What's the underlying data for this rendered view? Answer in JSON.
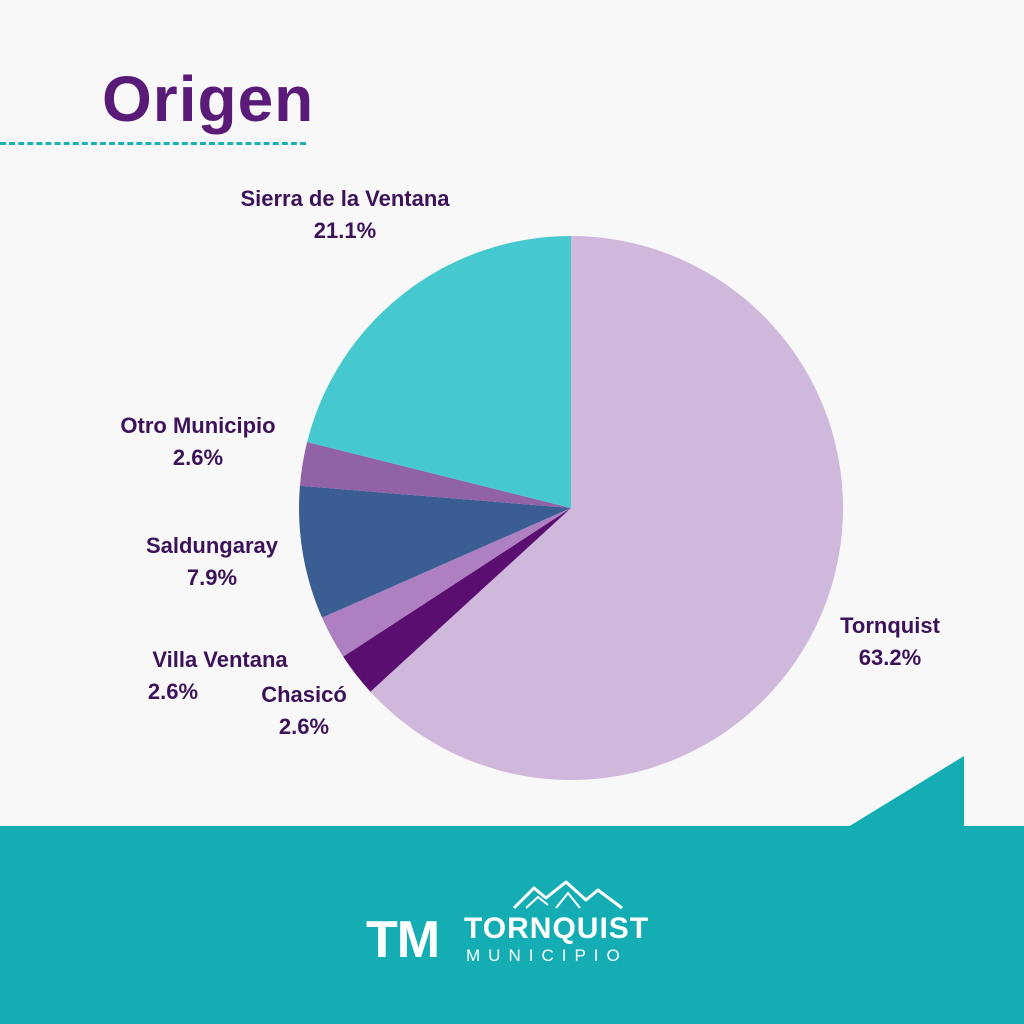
{
  "title": "Origen",
  "colors": {
    "title": "#5a1a78",
    "accent": "#19b1b5",
    "footer": "#13adb3",
    "label": "#3c1259"
  },
  "chart_data": {
    "type": "pie",
    "title": "Origen",
    "start_angle_deg": 0,
    "direction": "clockwise",
    "slices": [
      {
        "name": "Tornquist",
        "label": "Tornquist",
        "value_label": "63.2%",
        "value": 63.2,
        "color": "#cfb8dc"
      },
      {
        "name": "Chasicó",
        "label": "Chasicó",
        "value_label": "2.6%",
        "value": 2.6,
        "color": "#5a0f70"
      },
      {
        "name": "Villa Ventana",
        "label": "Villa Ventana",
        "value_label": "2.6%",
        "value": 2.6,
        "color": "#ae80c2"
      },
      {
        "name": "Saldungaray",
        "label": "Saldungaray",
        "value_label": "7.9%",
        "value": 7.9,
        "color": "#3a5d93"
      },
      {
        "name": "Otro Municipio",
        "label": "Otro Municipio",
        "value_label": "2.6%",
        "value": 2.6,
        "color": "#9262a6"
      },
      {
        "name": "Sierra de la Ventana",
        "label": "Sierra de la Ventana",
        "value_label": "21.1%",
        "value": 21.1,
        "color": "#45c9ce"
      }
    ]
  },
  "footer": {
    "logo_initials": "TM",
    "logo_name": "TORNQUIST",
    "logo_sub": "MUNICIPIO",
    "logo_icon": "mountains-icon"
  }
}
